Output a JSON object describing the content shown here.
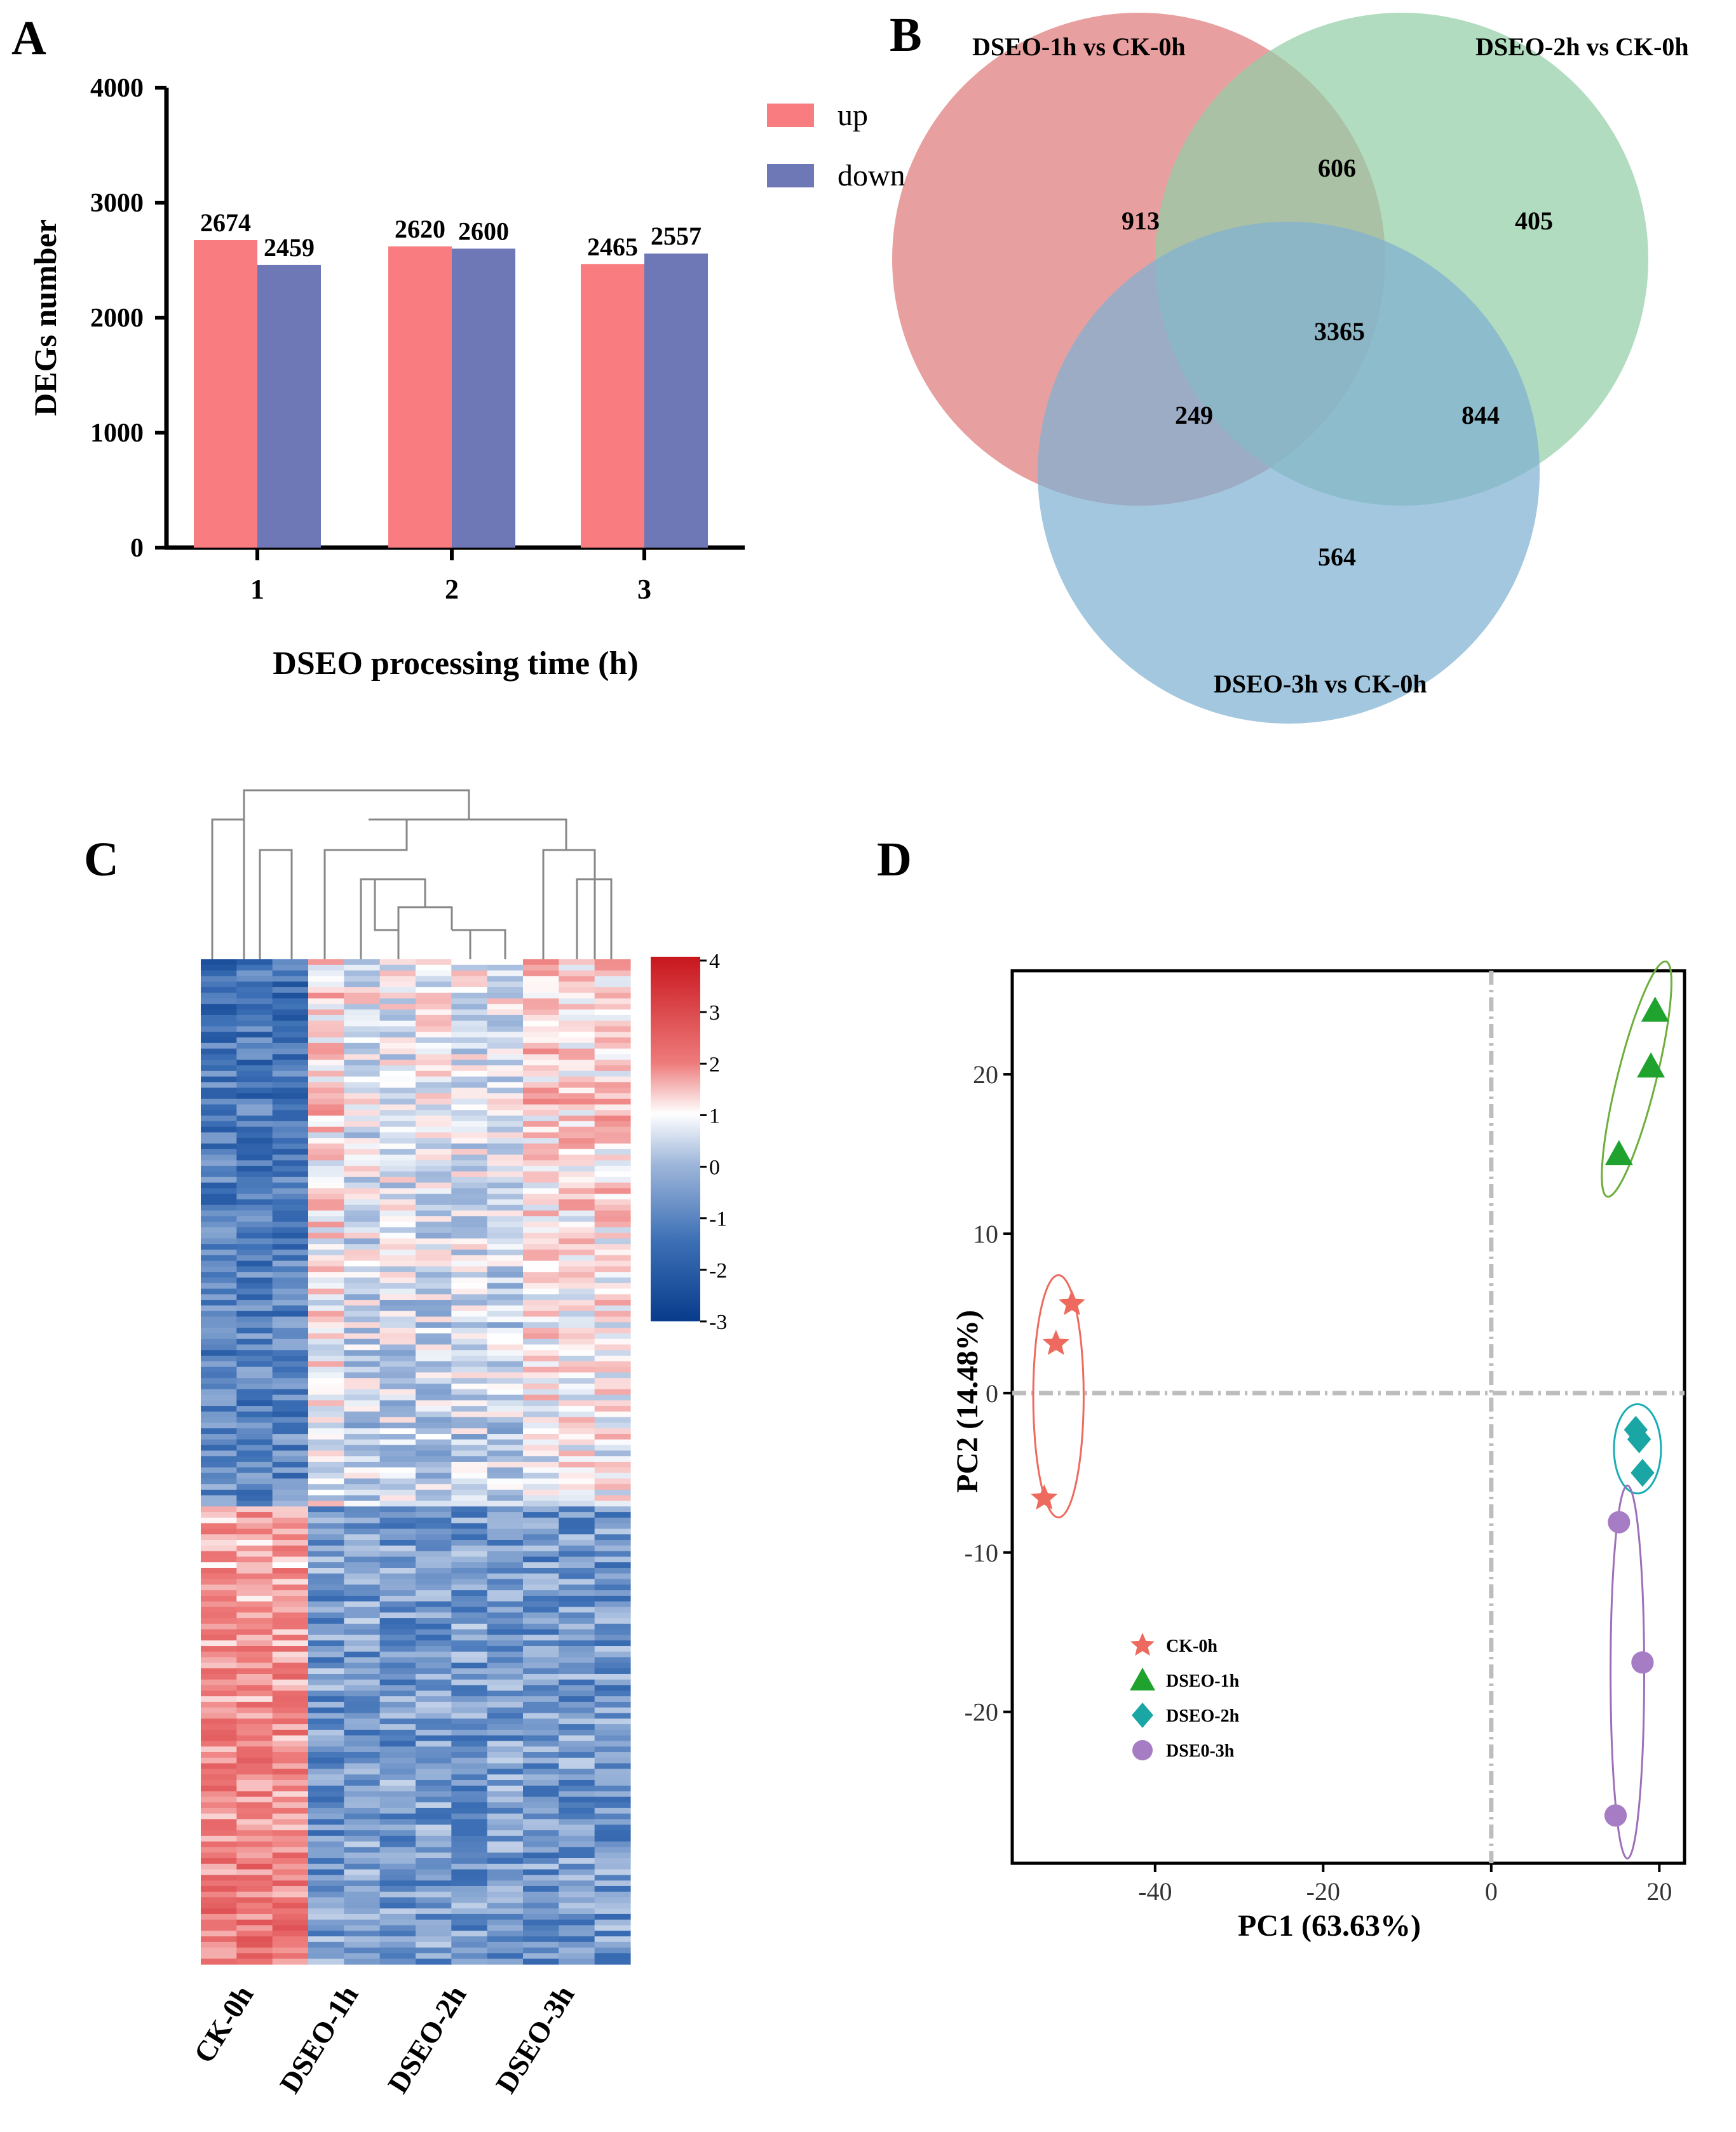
{
  "colors": {
    "up": "#F87C80",
    "down": "#6E78B6",
    "venn1": "#DF7A7C",
    "venn2": "#93CFA6",
    "venn3": "#7FB2D3",
    "ck": "#EE6A5E",
    "dseo1h": "#1FA22E",
    "dseo2h": "#19A6A5",
    "dseo3h": "#A67CC4",
    "ellipse_ck": "#EE6A5E",
    "ellipse_1h": "#6DAE3C",
    "ellipse_2h": "#19AEB5",
    "ellipse_3h": "#9E6FB8"
  },
  "chart_data": [
    {
      "panel": "A",
      "type": "bar",
      "title": "",
      "xlabel": "DSEO processing time (h)",
      "ylabel": "DEGs number",
      "categories": [
        "1",
        "2",
        "3"
      ],
      "series": [
        {
          "name": "up",
          "values": [
            2674,
            2620,
            2465
          ]
        },
        {
          "name": "down",
          "values": [
            2459,
            2600,
            2557
          ]
        }
      ],
      "ylim": [
        0,
        4000
      ],
      "yticks": [
        "0",
        "1000",
        "2000",
        "3000",
        "4000"
      ],
      "legend": "top-right",
      "grid": false
    },
    {
      "panel": "B",
      "type": "venn",
      "sets": [
        "DSEO-1h vs CK-0h",
        "DSEO-2h vs CK-0h",
        "DSEO-3h vs CK-0h"
      ],
      "regions": {
        "only1": "913",
        "only2": "405",
        "only3": "564",
        "s12": "606",
        "s13": "249",
        "s23": "844",
        "s123": "3365"
      }
    },
    {
      "panel": "C",
      "type": "heatmap",
      "samples": [
        "CK-0h",
        "DSEO-1h",
        "DSEO-2h",
        "DSEO-3h"
      ],
      "colorbar_ticks": [
        "4",
        "3",
        "2",
        "1",
        "0",
        "-1",
        "-2",
        "-3"
      ],
      "colorbar_range": [
        -3,
        4
      ]
    },
    {
      "panel": "D",
      "type": "scatter",
      "xlabel": "PC1 (63.63%)",
      "ylabel": "PC2 (14.48%)",
      "xlim": [
        -57,
        23
      ],
      "ylim": [
        -29.5,
        26.5
      ],
      "xticks": [
        "-40",
        "-20",
        "0",
        "20"
      ],
      "yticks": [
        "20",
        "10",
        "0",
        "-10",
        "-20"
      ],
      "legend": "lower-left",
      "series": [
        {
          "name": "CK-0h",
          "marker": "star",
          "points": [
            [
              -49.9,
              5.6
            ],
            [
              -51.8,
              3.1
            ],
            [
              -53.2,
              -6.6
            ]
          ]
        },
        {
          "name": "DSEO-1h",
          "marker": "triangle",
          "points": [
            [
              19.5,
              24.0
            ],
            [
              19.0,
              20.5
            ],
            [
              15.2,
              15.0
            ]
          ]
        },
        {
          "name": "DSEO-2h",
          "marker": "diamond",
          "points": [
            [
              17.2,
              -2.3
            ],
            [
              17.6,
              -2.9
            ],
            [
              18.0,
              -5.0
            ]
          ]
        },
        {
          "name": "DSE0-3h",
          "marker": "circle",
          "points": [
            [
              15.2,
              -8.1
            ],
            [
              18.0,
              -16.9
            ],
            [
              14.8,
              -26.5
            ]
          ]
        }
      ]
    }
  ]
}
